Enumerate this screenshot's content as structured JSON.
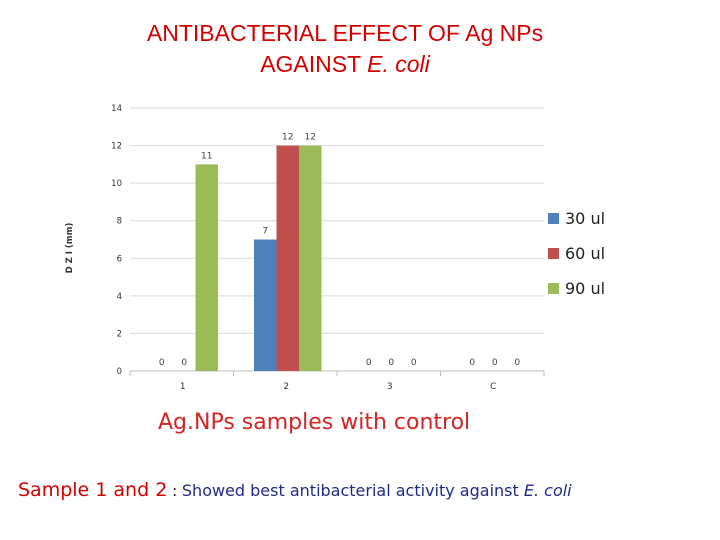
{
  "title": {
    "line1": "ANTIBACTERIAL EFFECT OF Ag NPs",
    "line2_prefix": "AGAINST ",
    "line2_italic": "E. coli"
  },
  "footer": {
    "lead": "Sample 1 and 2",
    "colon": " : ",
    "desc": "Showed best antibacterial activity against ",
    "organism": "E. coli"
  },
  "colors": {
    "title": "#d40000",
    "x_caption": "#d42424",
    "footer_desc": "#1f2a8a"
  },
  "chart_data": {
    "type": "bar",
    "categories": [
      "1",
      "2",
      "3",
      "C"
    ],
    "series": [
      {
        "name": "30 ul",
        "color": "#4f81bd",
        "values": [
          0,
          7,
          0,
          0
        ]
      },
      {
        "name": "60 ul",
        "color": "#c0504d",
        "values": [
          0,
          12,
          0,
          0
        ]
      },
      {
        "name": "90 ul",
        "color": "#9bbb59",
        "values": [
          11,
          12,
          0,
          0
        ]
      }
    ],
    "data_labels": [
      [
        "0",
        "7",
        "0",
        "0"
      ],
      [
        "0",
        "12",
        "0",
        "0"
      ],
      [
        "11",
        "12",
        "0",
        "0"
      ]
    ],
    "ylabel": "D Z I  (mm)",
    "xlabel": "Ag.NPs  samples with control",
    "ylim": [
      0,
      14
    ],
    "yticks": [
      0,
      2,
      4,
      6,
      8,
      10,
      12,
      14
    ],
    "grid": true,
    "legend_position": "right"
  }
}
